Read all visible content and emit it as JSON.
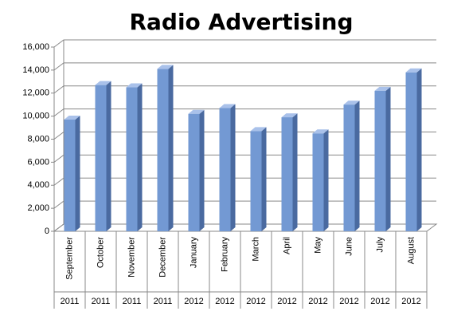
{
  "chart_data": {
    "type": "bar",
    "title": "Radio Advertising",
    "categories": [
      "September",
      "October",
      "November",
      "December",
      "January",
      "February",
      "March",
      "April",
      "May",
      "June",
      "July",
      "August"
    ],
    "years": [
      "2011",
      "2011",
      "2011",
      "2011",
      "2012",
      "2012",
      "2012",
      "2012",
      "2012",
      "2012",
      "2012",
      "2012"
    ],
    "values": [
      9700,
      12700,
      12500,
      14100,
      10200,
      10700,
      8700,
      9900,
      8500,
      11000,
      12200,
      13800
    ],
    "color": "#7399d3",
    "ylim": [
      0,
      16000
    ],
    "yticks": [
      0,
      {
        "value": 2000,
        "label": "2,000"
      },
      {
        "value": 4000,
        "label": "4,000"
      },
      {
        "value": 6000,
        "label": "6,000"
      },
      {
        "value": 8000,
        "label": "8,000"
      },
      {
        "value": 10000,
        "label": "10,000"
      },
      {
        "value": 12000,
        "label": "12,000"
      },
      {
        "value": 14000,
        "label": "14,000"
      },
      {
        "value": 16000,
        "label": "16,000"
      }
    ],
    "grid": true
  }
}
